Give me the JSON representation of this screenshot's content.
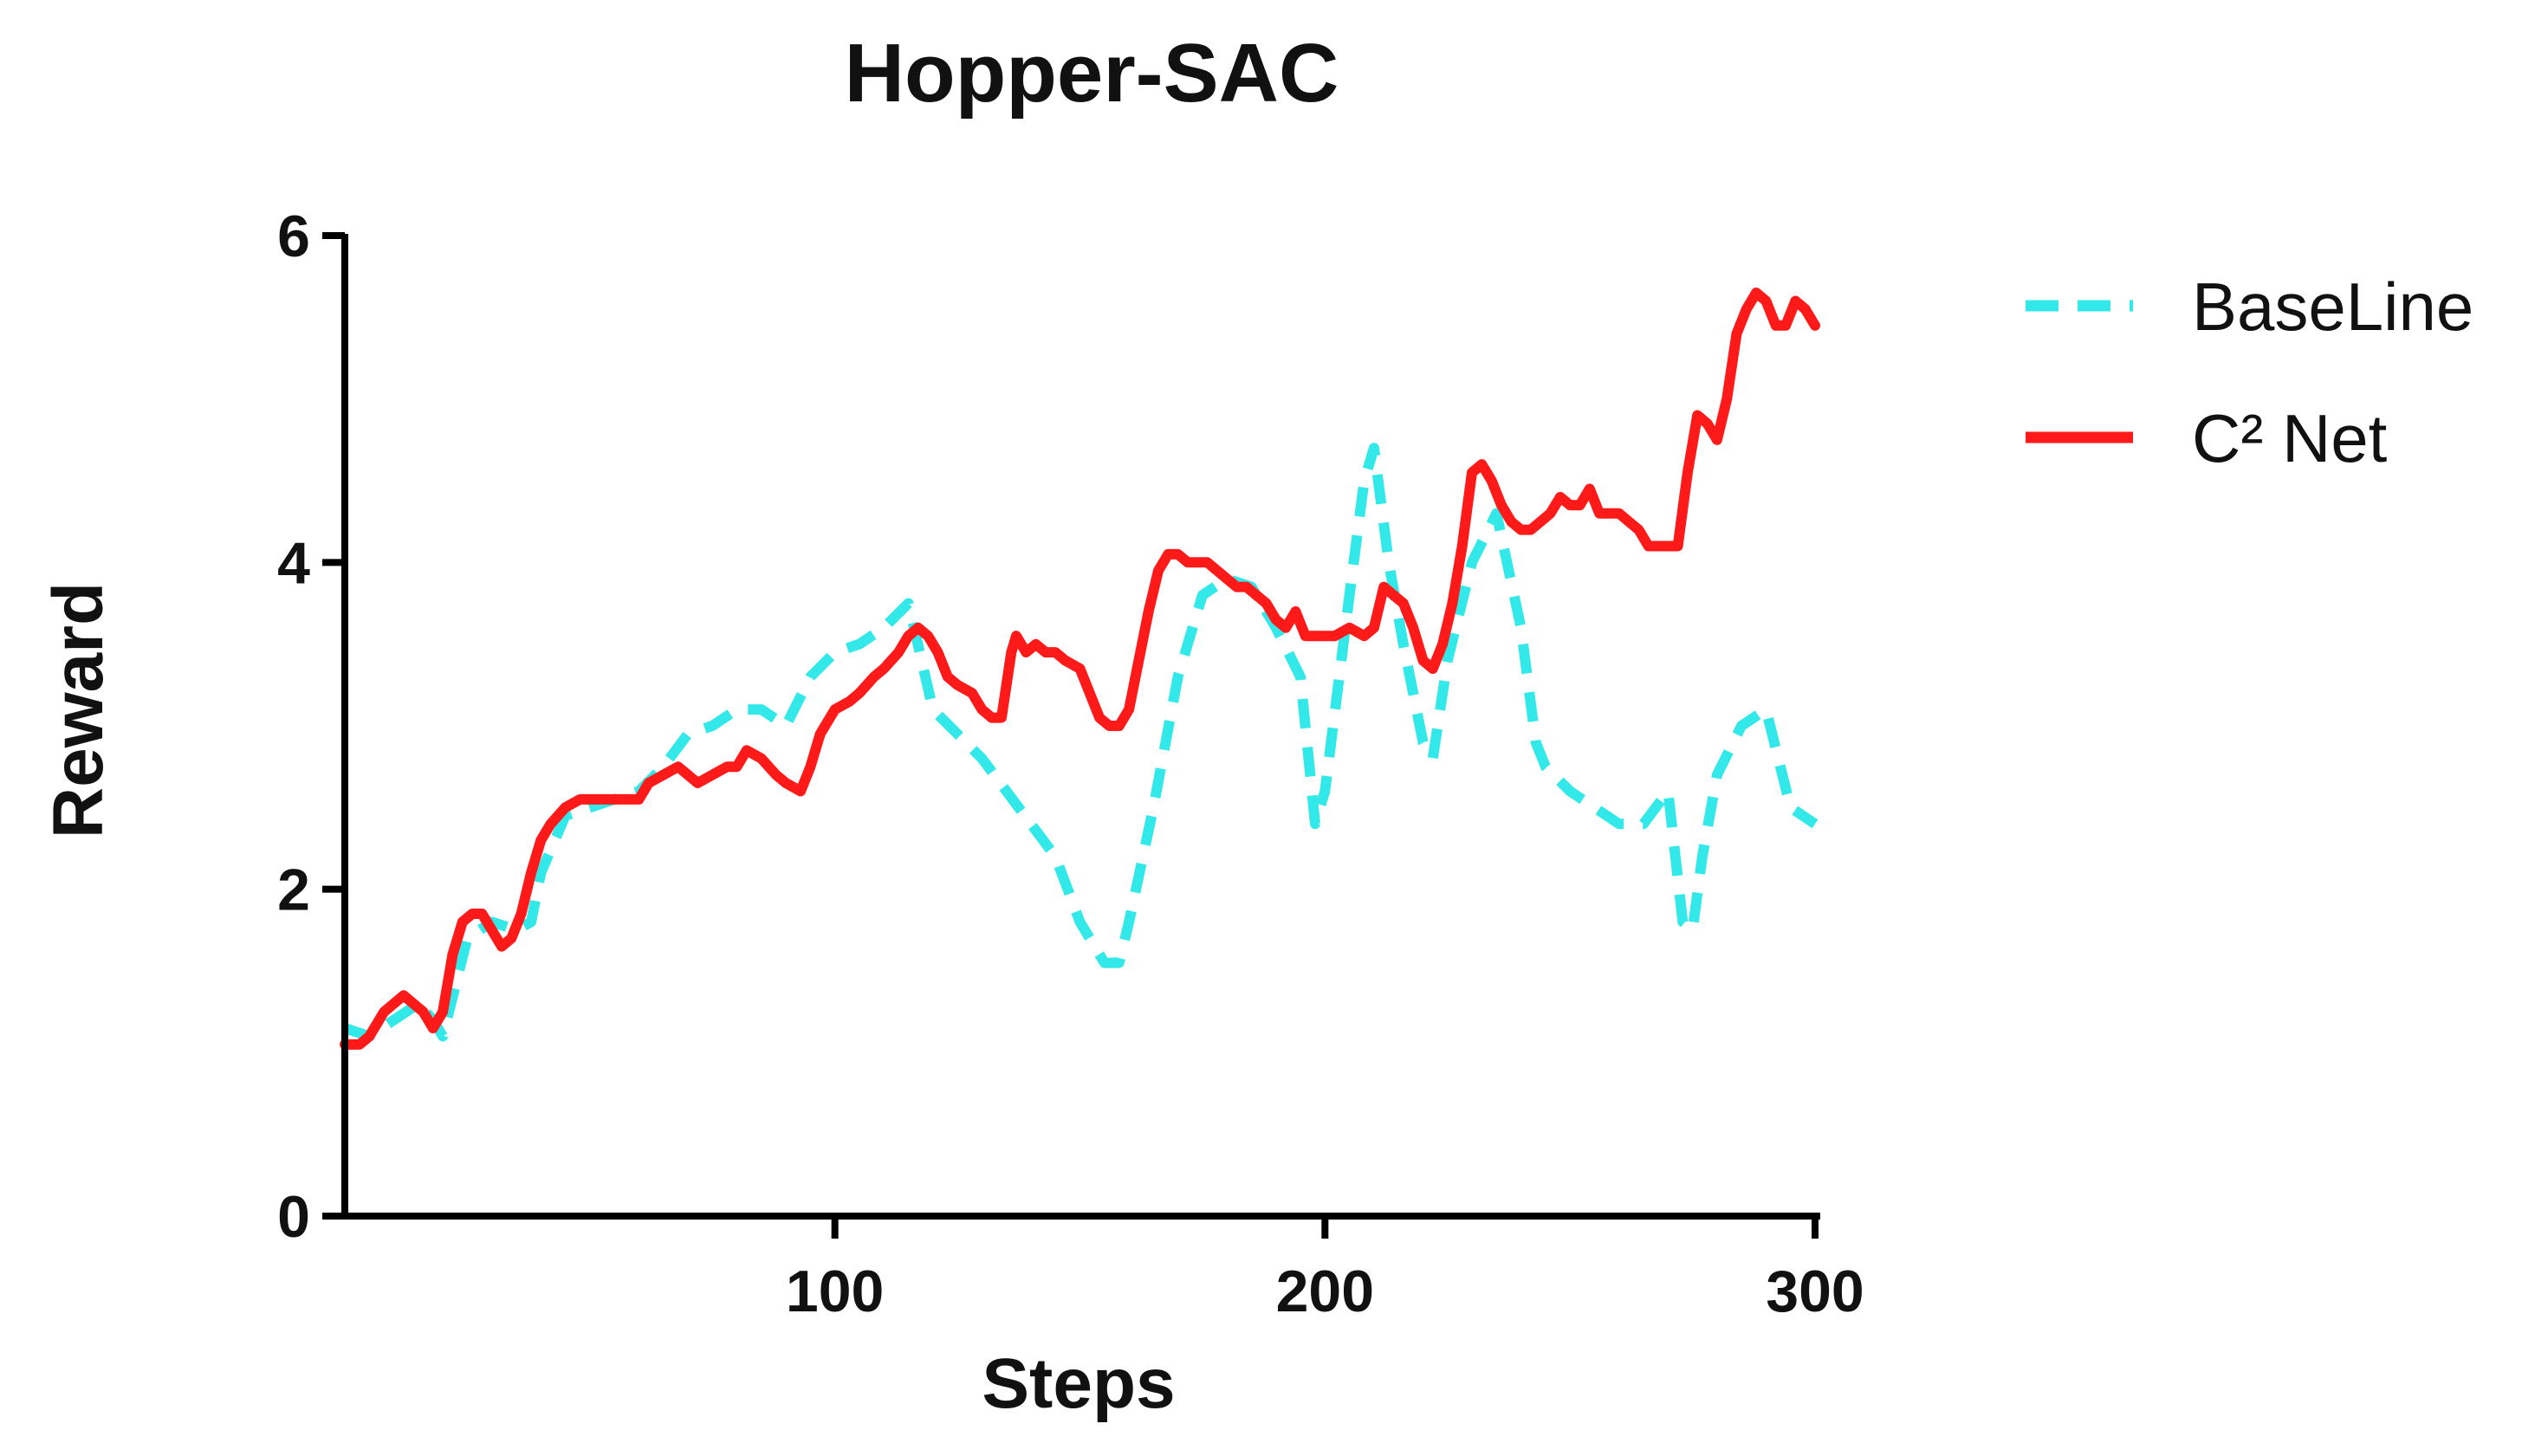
{
  "chart_data": {
    "type": "line",
    "title": "Hopper-SAC",
    "xlabel": "Steps",
    "ylabel": "Reward",
    "xlim": [
      0,
      300
    ],
    "ylim": [
      0,
      6
    ],
    "xticks": [
      100,
      200,
      300
    ],
    "yticks": [
      0,
      2,
      4,
      6
    ],
    "grid": false,
    "legend_position": "top-right",
    "series": [
      {
        "name": "BaseLine",
        "color": "#33e8e8",
        "dash": "dashed",
        "x": [
          0,
          5,
          10,
          15,
          18,
          20,
          25,
          30,
          35,
          38,
          40,
          45,
          50,
          55,
          60,
          65,
          70,
          75,
          80,
          85,
          90,
          95,
          100,
          105,
          110,
          115,
          120,
          125,
          130,
          135,
          140,
          145,
          150,
          155,
          158,
          160,
          165,
          170,
          175,
          180,
          185,
          190,
          195,
          198,
          200,
          205,
          208,
          210,
          213,
          216,
          220,
          222,
          225,
          230,
          235,
          240,
          243,
          245,
          250,
          255,
          260,
          265,
          270,
          273,
          275,
          277,
          280,
          285,
          290,
          295,
          300
        ],
        "y": [
          1.15,
          1.1,
          1.2,
          1.3,
          1.2,
          1.1,
          1.7,
          1.8,
          1.75,
          1.8,
          2.1,
          2.45,
          2.5,
          2.55,
          2.6,
          2.75,
          2.95,
          3.0,
          3.1,
          3.1,
          3.0,
          3.3,
          3.45,
          3.5,
          3.6,
          3.75,
          3.1,
          2.95,
          2.8,
          2.6,
          2.4,
          2.2,
          1.8,
          1.55,
          1.55,
          1.8,
          2.5,
          3.3,
          3.8,
          3.9,
          3.85,
          3.6,
          3.3,
          2.4,
          2.6,
          3.8,
          4.5,
          4.7,
          4.0,
          3.5,
          2.9,
          2.8,
          3.4,
          4.0,
          4.3,
          3.6,
          2.9,
          2.75,
          2.6,
          2.5,
          2.4,
          2.4,
          2.6,
          1.8,
          1.75,
          2.2,
          2.7,
          3.0,
          3.1,
          2.5,
          2.4
        ]
      },
      {
        "name": "C² Net",
        "color": "#ff1a1a",
        "dash": "solid",
        "x": [
          0,
          3,
          5,
          8,
          10,
          12,
          14,
          16,
          18,
          20,
          22,
          24,
          26,
          28,
          30,
          32,
          34,
          36,
          38,
          40,
          42,
          45,
          48,
          50,
          55,
          60,
          62,
          65,
          68,
          70,
          72,
          75,
          78,
          80,
          82,
          85,
          88,
          90,
          93,
          95,
          97,
          100,
          103,
          105,
          108,
          110,
          113,
          115,
          117,
          119,
          121,
          123,
          125,
          128,
          130,
          132,
          134,
          136,
          137,
          139,
          141,
          143,
          145,
          147,
          150,
          152,
          154,
          156,
          158,
          160,
          162,
          164,
          166,
          168,
          170,
          172,
          174,
          176,
          178,
          180,
          182,
          184,
          186,
          188,
          190,
          192,
          194,
          196,
          198,
          200,
          202,
          205,
          208,
          210,
          212,
          214,
          216,
          218,
          220,
          222,
          224,
          226,
          228,
          230,
          232,
          234,
          236,
          238,
          240,
          242,
          244,
          246,
          248,
          250,
          252,
          254,
          256,
          258,
          260,
          262,
          264,
          266,
          268,
          270,
          272,
          274,
          276,
          278,
          280,
          282,
          284,
          286,
          288,
          290,
          292,
          294,
          296,
          298,
          300
        ],
        "y": [
          1.05,
          1.05,
          1.1,
          1.25,
          1.3,
          1.35,
          1.3,
          1.25,
          1.15,
          1.25,
          1.6,
          1.8,
          1.85,
          1.85,
          1.75,
          1.65,
          1.7,
          1.85,
          2.1,
          2.3,
          2.4,
          2.5,
          2.55,
          2.55,
          2.55,
          2.55,
          2.65,
          2.7,
          2.75,
          2.7,
          2.65,
          2.7,
          2.75,
          2.75,
          2.85,
          2.8,
          2.7,
          2.65,
          2.6,
          2.75,
          2.95,
          3.1,
          3.15,
          3.2,
          3.3,
          3.35,
          3.45,
          3.55,
          3.6,
          3.55,
          3.45,
          3.3,
          3.25,
          3.2,
          3.1,
          3.05,
          3.05,
          3.45,
          3.55,
          3.45,
          3.5,
          3.45,
          3.45,
          3.4,
          3.35,
          3.2,
          3.05,
          3.0,
          3.0,
          3.1,
          3.4,
          3.7,
          3.95,
          4.05,
          4.05,
          4.0,
          4.0,
          4.0,
          3.95,
          3.9,
          3.85,
          3.85,
          3.8,
          3.75,
          3.65,
          3.6,
          3.7,
          3.55,
          3.55,
          3.55,
          3.55,
          3.6,
          3.55,
          3.6,
          3.85,
          3.8,
          3.75,
          3.6,
          3.4,
          3.35,
          3.5,
          3.75,
          4.1,
          4.55,
          4.6,
          4.5,
          4.35,
          4.25,
          4.2,
          4.2,
          4.25,
          4.3,
          4.4,
          4.35,
          4.35,
          4.45,
          4.3,
          4.3,
          4.3,
          4.25,
          4.2,
          4.1,
          4.1,
          4.1,
          4.1,
          4.55,
          4.9,
          4.85,
          4.75,
          5.0,
          5.4,
          5.55,
          5.65,
          5.6,
          5.45,
          5.45,
          5.6,
          5.55,
          5.45
        ]
      }
    ]
  }
}
